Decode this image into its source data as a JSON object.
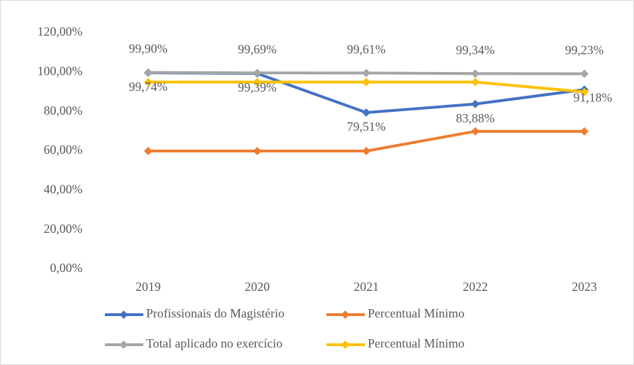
{
  "chart_data": {
    "type": "line",
    "categories": [
      "2019",
      "2020",
      "2021",
      "2022",
      "2023"
    ],
    "series": [
      {
        "name": "Profissionais do Magistério",
        "color": "#4472c4",
        "values": [
          99.74,
          99.39,
          79.51,
          83.88,
          91.18
        ],
        "value_labels": [
          "99,74%",
          "99,39%",
          "79,51%",
          "83,88%",
          "91,18%"
        ]
      },
      {
        "name": "Percentual Mínimo",
        "color": "#ed7d31",
        "values": [
          60,
          60,
          60,
          70,
          70
        ]
      },
      {
        "name": "Total aplicado no exercício",
        "color": "#a5a5a5",
        "values": [
          99.9,
          99.69,
          99.61,
          99.34,
          99.23
        ],
        "value_labels": [
          "99,90%",
          "99,69%",
          "99,61%",
          "99,34%",
          "99,23%"
        ]
      },
      {
        "name": "Percentual Mínimo",
        "color": "#ffc000",
        "values": [
          95,
          95,
          95,
          95,
          90
        ]
      }
    ],
    "ylim": [
      0,
      120
    ],
    "yticks": [
      {
        "value": 0,
        "label": "0,00%"
      },
      {
        "value": 20,
        "label": "20,00%"
      },
      {
        "value": 40,
        "label": "40,00%"
      },
      {
        "value": 60,
        "label": "60,00%"
      },
      {
        "value": 80,
        "label": "80,00%"
      },
      {
        "value": 100,
        "label": "100,00%"
      },
      {
        "value": 120,
        "label": "120,00%"
      }
    ],
    "grid": false
  }
}
